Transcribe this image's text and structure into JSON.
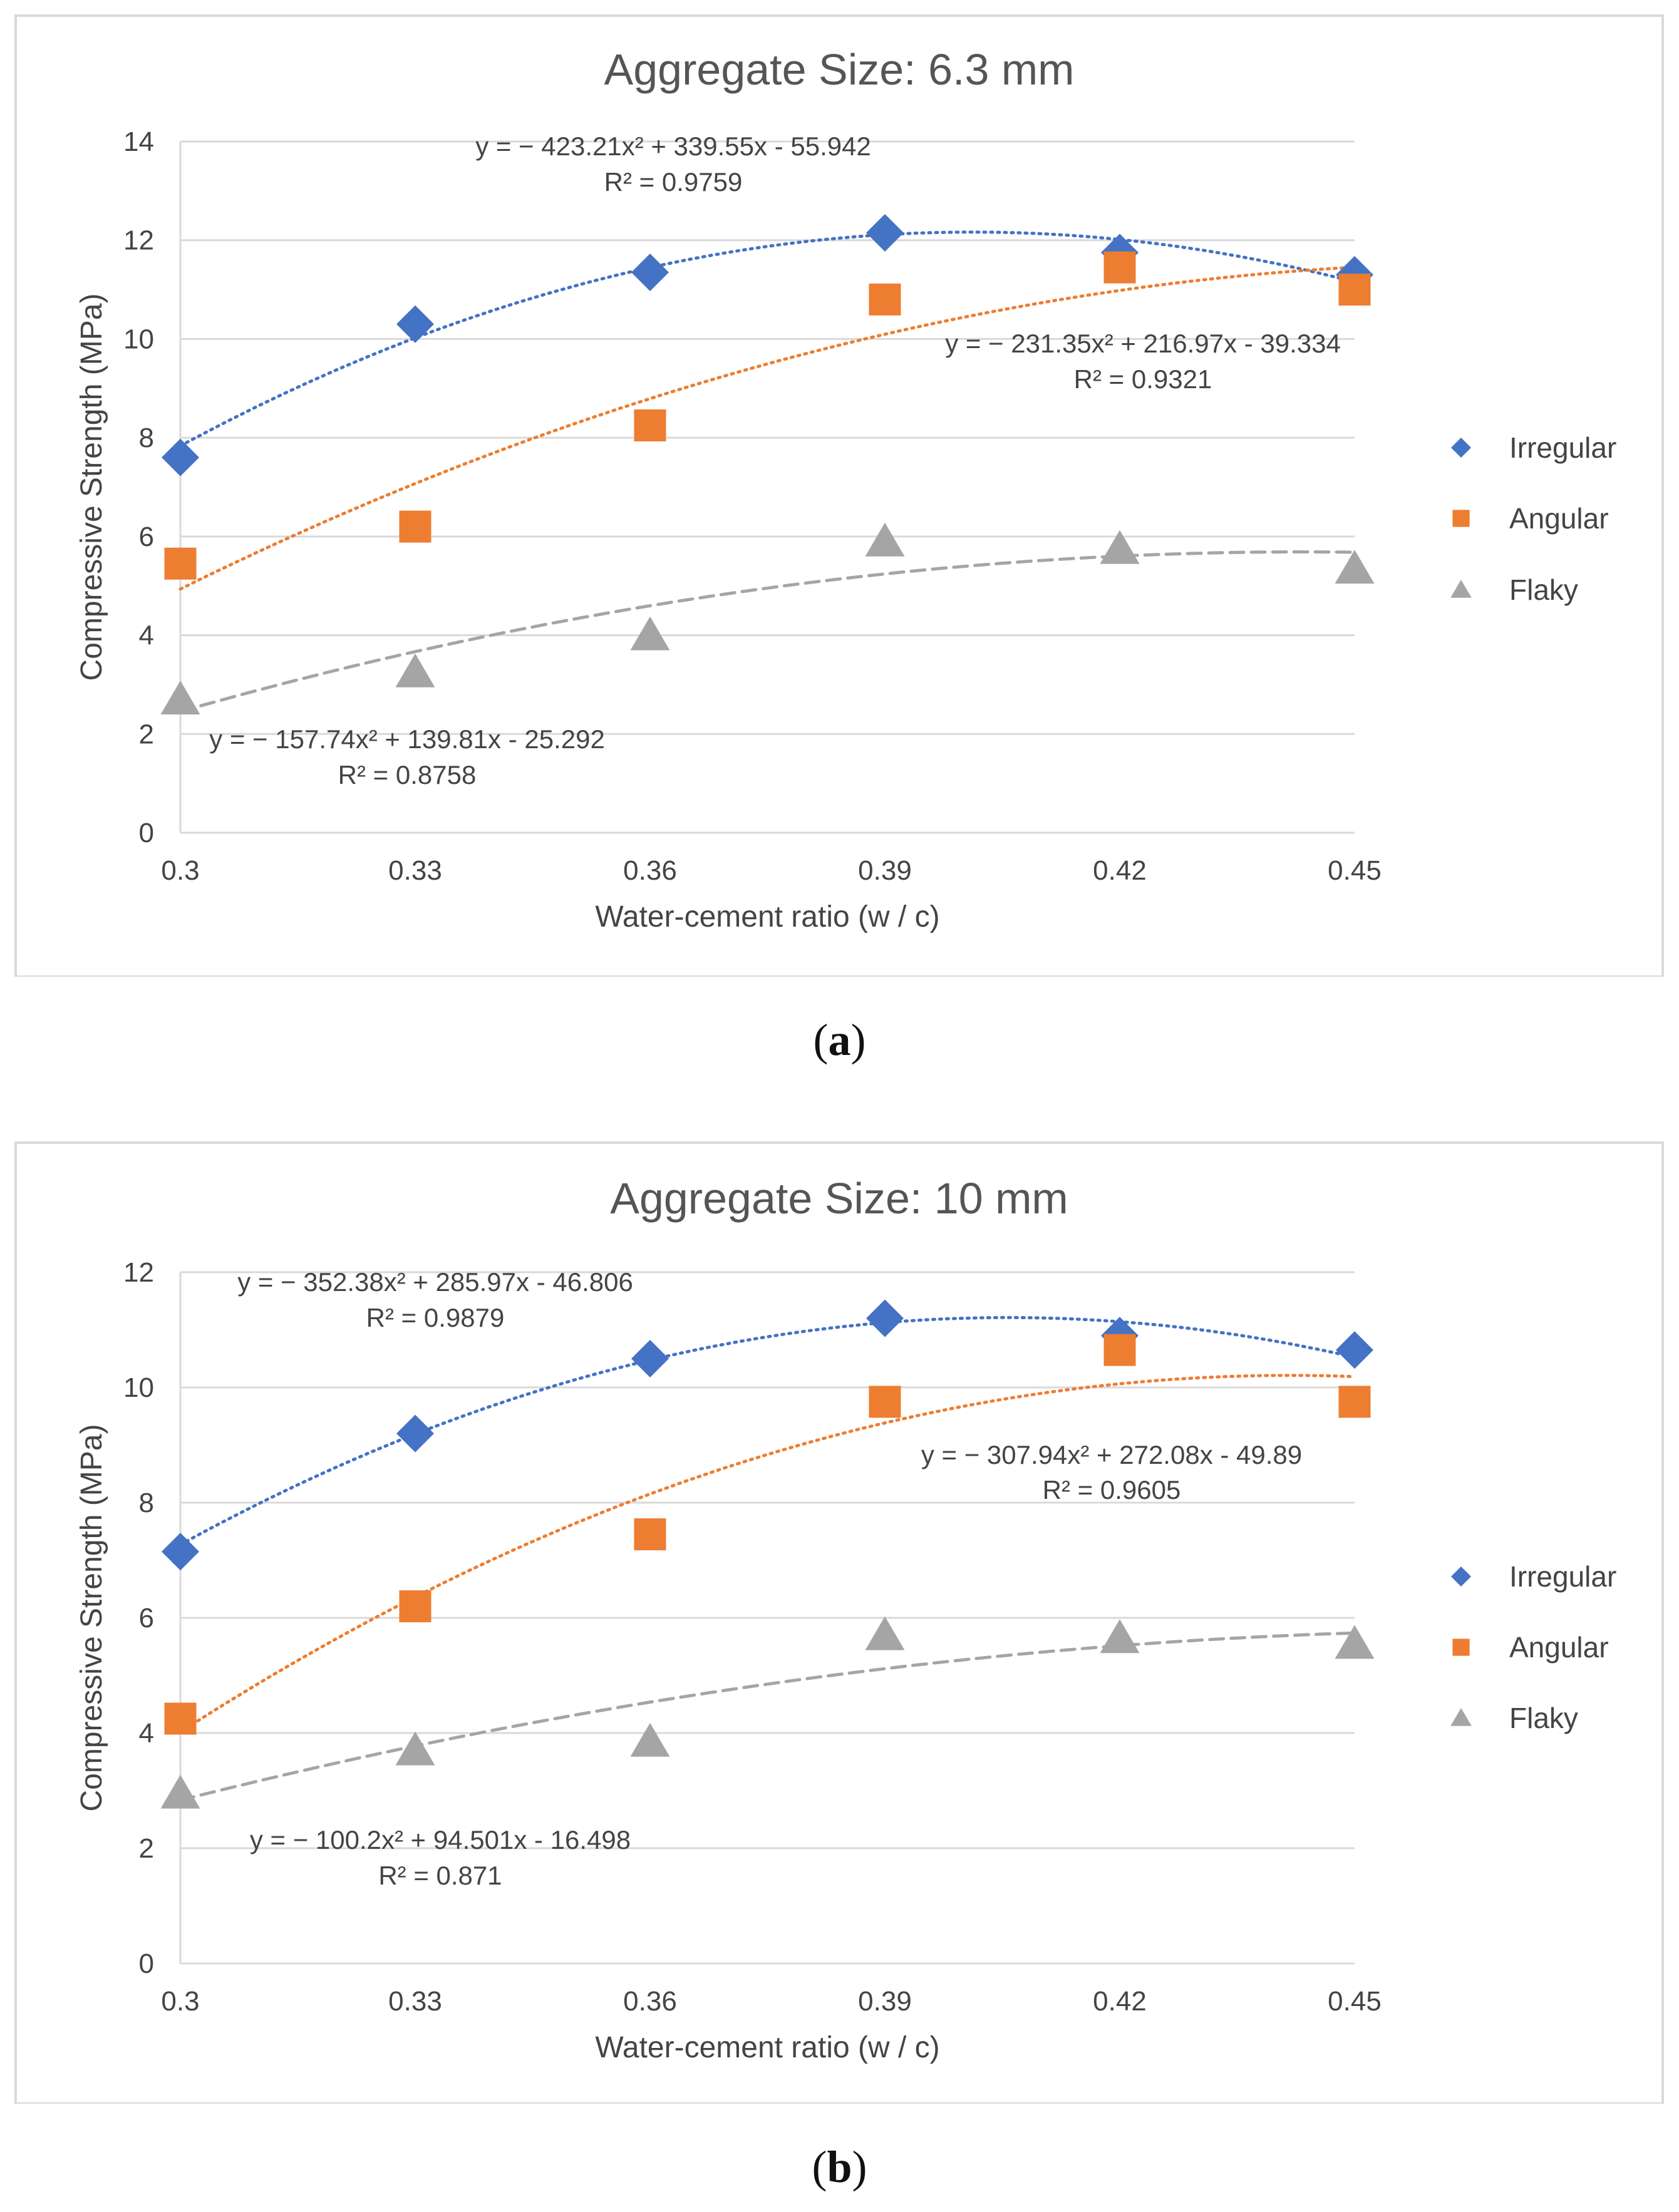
{
  "panels": [
    {
      "caption_letter": "a",
      "chart_data": {
        "type": "scatter",
        "title": "Aggregate Size: 6.3 mm",
        "xlabel": "Water-cement ratio (w / c)",
        "ylabel": "Compressive Strength (MPa)",
        "x": [
          0.3,
          0.33,
          0.36,
          0.39,
          0.42,
          0.45
        ],
        "x_ticks": [
          "0.3",
          "0.33",
          "0.36",
          "0.39",
          "0.42",
          "0.45"
        ],
        "ylim": [
          0,
          14
        ],
        "y_ticks": [
          0,
          2,
          4,
          6,
          8,
          10,
          12,
          14
        ],
        "grid": true,
        "legend_position": "right",
        "series": [
          {
            "name": "Irregular",
            "marker": "diamond",
            "color": "#4472C4",
            "values": [
              7.6,
              10.3,
              11.35,
              12.15,
              11.75,
              11.3
            ],
            "trendline": {
              "a": -423.21,
              "b": 339.55,
              "c": -55.942,
              "style": "dotted"
            },
            "equation": "y = − 423.21x² + 339.55x - 55.942",
            "r2": "R² = 0.9759"
          },
          {
            "name": "Angular",
            "marker": "square",
            "color": "#ED7D31",
            "values": [
              5.45,
              6.2,
              8.25,
              10.8,
              11.45,
              11.0
            ],
            "trendline": {
              "a": -231.35,
              "b": 216.97,
              "c": -39.334,
              "style": "dotted"
            },
            "equation": "y = − 231.35x² + 216.97x - 39.334",
            "r2": "R² = 0.9321"
          },
          {
            "name": "Flaky",
            "marker": "triangle",
            "color": "#A5A5A5",
            "values": [
              2.7,
              3.25,
              4.0,
              5.9,
              5.75,
              5.35
            ],
            "trendline": {
              "a": -157.74,
              "b": 139.81,
              "c": -25.292,
              "style": "dashed"
            },
            "equation": "y = − 157.74x² + 139.81x - 25.292",
            "r2": "R² = 0.8758"
          }
        ]
      }
    },
    {
      "caption_letter": "b",
      "chart_data": {
        "type": "scatter",
        "title": "Aggregate Size: 10 mm",
        "xlabel": "Water-cement ratio (w / c)",
        "ylabel": "Compressive Strength (MPa)",
        "x": [
          0.3,
          0.33,
          0.36,
          0.39,
          0.42,
          0.45
        ],
        "x_ticks": [
          "0.3",
          "0.33",
          "0.36",
          "0.39",
          "0.42",
          "0.45"
        ],
        "ylim": [
          0,
          12
        ],
        "y_ticks": [
          0,
          2,
          4,
          6,
          8,
          10,
          12
        ],
        "grid": true,
        "legend_position": "right",
        "series": [
          {
            "name": "Irregular",
            "marker": "diamond",
            "color": "#4472C4",
            "values": [
              7.15,
              9.2,
              10.5,
              11.2,
              10.9,
              10.65
            ],
            "trendline": {
              "a": -352.38,
              "b": 285.97,
              "c": -46.806,
              "style": "dotted"
            },
            "equation": "y = − 352.38x² + 285.97x - 46.806",
            "r2": "R² = 0.9879"
          },
          {
            "name": "Angular",
            "marker": "square",
            "color": "#ED7D31",
            "values": [
              4.25,
              6.2,
              7.45,
              9.75,
              10.65,
              9.75
            ],
            "trendline": {
              "a": -307.94,
              "b": 272.08,
              "c": -49.89,
              "style": "dotted"
            },
            "equation": "y = − 307.94x² + 272.08x - 49.89",
            "r2": "R² = 0.9605"
          },
          {
            "name": "Flaky",
            "marker": "triangle",
            "color": "#A5A5A5",
            "values": [
              2.95,
              3.7,
              3.85,
              5.7,
              5.65,
              5.55
            ],
            "trendline": {
              "a": -100.2,
              "b": 94.501,
              "c": -16.498,
              "style": "dashed"
            },
            "equation": "y = − 100.2x² + 94.501x - 16.498",
            "r2": "R² = 0.871"
          }
        ]
      }
    }
  ]
}
